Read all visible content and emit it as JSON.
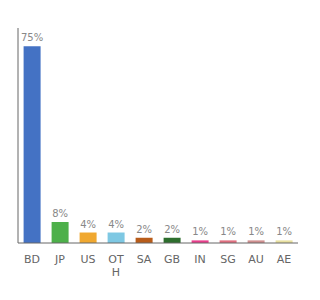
{
  "chart_data": {
    "type": "bar",
    "categories": [
      "BD",
      "JP",
      "US",
      "OT\nH",
      "SA",
      "GB",
      "IN",
      "SG",
      "AU",
      "AE"
    ],
    "values": [
      75,
      8,
      4,
      4,
      2,
      2,
      1,
      1,
      1,
      1
    ],
    "value_labels": [
      "75%",
      "8%",
      "4%",
      "4%",
      "2%",
      "2%",
      "1%",
      "1%",
      "1%",
      "1%"
    ],
    "colors": [
      "#4472c4",
      "#4db04a",
      "#f0a830",
      "#7ec8e3",
      "#b85c1a",
      "#2d6e2d",
      "#e83e8c",
      "#e07080",
      "#d09090",
      "#e8e0a0"
    ],
    "ylim": [
      0,
      82
    ],
    "data_labels": true,
    "tick_labels": "x",
    "grid": false
  }
}
